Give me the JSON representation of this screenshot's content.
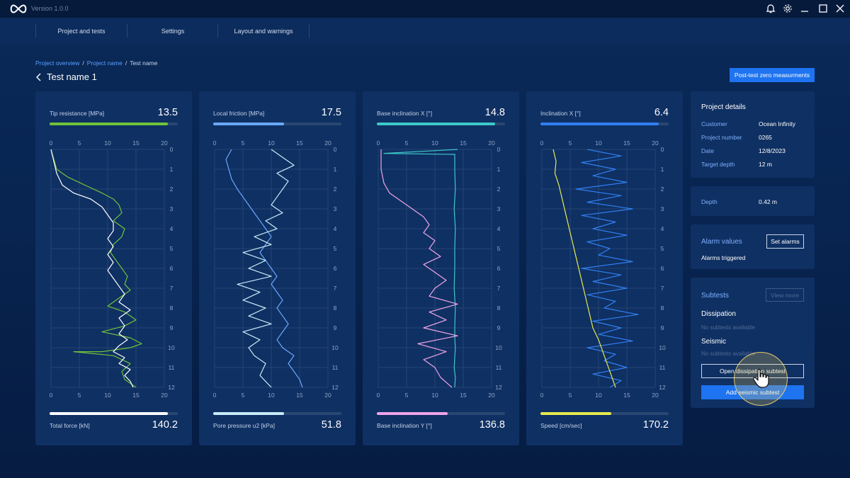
{
  "app": {
    "version": "Version 1.0.0",
    "logo_icon": "infinity-icon"
  },
  "window_controls": [
    "bell-icon",
    "gear-icon",
    "minimize-icon",
    "maximize-icon",
    "close-icon"
  ],
  "nav": {
    "items": [
      "Project and tests",
      "Settings",
      "Layout and warnings"
    ]
  },
  "breadcrumb": {
    "items": [
      "Project overview",
      "Project name",
      "Test name"
    ]
  },
  "page": {
    "title": "Test name 1"
  },
  "actions": {
    "post_test": "Post-test zero measurments"
  },
  "colors": {
    "accent": "#1e73f0",
    "tip_resistance": "#6fc23a",
    "total_force": "#ffffff",
    "local_friction": "#6aa8ff",
    "pore_pressure": "#c8ecf8",
    "inclination_x_base": "#3cc8c8",
    "inclination_y_base": "#f0a4e8",
    "inclination_x": "#2f7ff0",
    "speed": "#e6ea50"
  },
  "charts": [
    {
      "top": {
        "label": "Tip resistance [MPa]",
        "value": "13.5",
        "fill": 0.92
      },
      "bottom": {
        "label": "Total force [kN]",
        "value": "140.2",
        "fill": 0.92
      },
      "x_ticks": [
        "0",
        "5",
        "10",
        "15",
        "20"
      ]
    },
    {
      "top": {
        "label": "Local friction [MPa]",
        "value": "17.5",
        "fill": 0.55
      },
      "bottom": {
        "label": "Pore pressure u2 [kPa]",
        "value": "51.8",
        "fill": 0.55
      },
      "x_ticks": [
        "0",
        "5",
        "10",
        "15",
        "20"
      ]
    },
    {
      "top": {
        "label": "Base inclination X [°]",
        "value": "14.8",
        "fill": 0.92
      },
      "bottom": {
        "label": "Base inclination Y [°]",
        "value": "136.8",
        "fill": 0.55
      },
      "x_ticks": [
        "0",
        "5",
        "10",
        "15",
        "20"
      ]
    },
    {
      "top": {
        "label": "Inclination  X [°]",
        "value": "6.4",
        "fill": 0.92
      },
      "bottom": {
        "label": "Speed [cm/sec]",
        "value": "170.2",
        "fill": 0.55
      },
      "x_ticks": [
        "0",
        "5",
        "10",
        "15",
        "20"
      ]
    }
  ],
  "depth_ticks": [
    "0",
    "1",
    "2",
    "3",
    "4",
    "5",
    "6",
    "7",
    "8",
    "9",
    "10",
    "11",
    "12"
  ],
  "chart_data": [
    {
      "type": "line",
      "xlim": [
        0,
        20
      ],
      "ylim": [
        0,
        12
      ],
      "y_axis": "depth (inverted)",
      "series": [
        {
          "name": "Tip resistance [MPa]",
          "x": [
            0,
            0.5,
            1,
            3,
            6,
            9,
            11,
            12,
            12.5,
            11,
            13,
            12.5,
            11,
            10.5,
            11.5,
            12.5,
            13.5,
            13,
            14,
            12,
            10,
            13,
            15,
            13,
            9,
            14,
            16,
            14,
            9,
            4,
            11,
            14,
            12.5,
            13,
            15
          ],
          "y": [
            0,
            0.5,
            1,
            1.4,
            1.8,
            2.2,
            2.5,
            2.8,
            3.2,
            3.6,
            4,
            4.4,
            4.8,
            5.2,
            5.6,
            6,
            6.4,
            6.8,
            7.1,
            7.5,
            7.9,
            8.2,
            8.6,
            8.9,
            9.2,
            9.5,
            9.8,
            10,
            10.2,
            10.2,
            10.4,
            10.8,
            11.2,
            11.6,
            12
          ]
        },
        {
          "name": "Total force [kN]",
          "x": [
            0,
            0.5,
            1,
            2,
            4,
            7,
            9,
            10,
            11,
            11,
            10,
            11,
            10,
            11,
            10,
            11,
            12,
            13,
            12,
            14,
            12,
            13,
            12,
            13.5,
            12,
            11,
            13,
            12,
            14,
            13,
            14,
            14.5
          ],
          "y": [
            0,
            0.6,
            1.2,
            1.8,
            2.2,
            2.5,
            2.9,
            3.3,
            3.7,
            4.1,
            4.5,
            4.9,
            5.3,
            5.7,
            6.1,
            6.5,
            6.9,
            7.3,
            7.7,
            8.1,
            8.5,
            8.9,
            9.3,
            9.6,
            9.9,
            10.2,
            10.5,
            10.8,
            11.1,
            11.4,
            11.7,
            12
          ]
        }
      ]
    },
    {
      "type": "line",
      "xlim": [
        0,
        20
      ],
      "ylim": [
        0,
        12
      ],
      "y_axis": "depth (inverted)",
      "series": [
        {
          "name": "Local friction [MPa]",
          "x": [
            3,
            2,
            2.5,
            3,
            4,
            5,
            6,
            7,
            8,
            9,
            10,
            9,
            8,
            9,
            10,
            11,
            10,
            11,
            12,
            11,
            12,
            13,
            12,
            11,
            12,
            14,
            13,
            14,
            15,
            15.5
          ],
          "y": [
            0,
            0.5,
            1,
            1.5,
            2,
            2.4,
            2.8,
            3.2,
            3.6,
            4,
            4.4,
            4.8,
            5.2,
            5.6,
            6,
            6.4,
            6.8,
            7.2,
            7.6,
            8,
            8.4,
            8.8,
            9.2,
            9.6,
            10,
            10.4,
            10.8,
            11.2,
            11.6,
            12
          ]
        },
        {
          "name": "Pore pressure u2 [kPa]",
          "x": [
            10,
            12,
            14,
            11,
            13,
            12,
            11,
            10,
            12,
            9,
            11,
            7,
            10,
            5,
            9,
            6,
            10,
            4,
            8,
            5,
            9,
            6,
            10,
            5,
            8,
            6,
            7,
            9,
            8,
            10
          ],
          "y": [
            0,
            0.4,
            0.8,
            1.2,
            1.6,
            2,
            2.4,
            2.8,
            3.2,
            3.6,
            4,
            4.4,
            4.8,
            5.2,
            5.6,
            6,
            6.4,
            6.8,
            7.2,
            7.6,
            8,
            8.4,
            8.8,
            9.2,
            9.6,
            10,
            10.4,
            10.8,
            11.4,
            12
          ]
        }
      ]
    },
    {
      "type": "line",
      "xlim": [
        0,
        20
      ],
      "ylim": [
        0,
        12
      ],
      "y_axis": "depth (inverted)",
      "series": [
        {
          "name": "Base inclination X [°]",
          "x": [
            14,
            1,
            13.5,
            13.5,
            13.6,
            13.4,
            13.6,
            13.5,
            13.5,
            13.4,
            13.6,
            13.5,
            13.5,
            13.6,
            13.5,
            13.4,
            13.6,
            13.5
          ],
          "y": [
            0,
            0.2,
            0.25,
            1,
            2,
            3,
            4,
            5,
            6,
            7,
            8,
            9,
            9.5,
            10,
            10.5,
            11,
            11.5,
            12
          ]
        },
        {
          "name": "Base inclination Y [°]",
          "x": [
            0.5,
            0.5,
            1,
            2,
            4,
            6,
            8,
            9,
            8,
            10,
            9,
            11,
            8,
            10,
            12,
            10,
            9,
            14,
            9,
            12,
            8,
            14,
            7,
            12,
            8,
            10,
            11,
            13
          ],
          "y": [
            0,
            1,
            1.7,
            2.2,
            2.6,
            3,
            3.4,
            3.8,
            4.2,
            4.6,
            5,
            5.4,
            5.8,
            6.2,
            6.6,
            7,
            7.4,
            7.8,
            8.2,
            8.6,
            9,
            9.4,
            9.8,
            10.2,
            10.6,
            11,
            11.5,
            12
          ]
        }
      ]
    },
    {
      "type": "line",
      "xlim": [
        0,
        20
      ],
      "ylim": [
        0,
        12
      ],
      "y_axis": "depth (inverted)",
      "series": [
        {
          "name": "Inclination  X [°]",
          "x": [
            8,
            14,
            7,
            13,
            9,
            15,
            6,
            14,
            8,
            16,
            7,
            13,
            9,
            15,
            8,
            12,
            10,
            16,
            7,
            14,
            9,
            15,
            8,
            13,
            11,
            17,
            9,
            14,
            10,
            16,
            8,
            13,
            11,
            15,
            9,
            14,
            12
          ],
          "y": [
            0,
            0.33,
            0.66,
            1,
            1.33,
            1.66,
            2,
            2.33,
            2.66,
            3,
            3.33,
            3.66,
            4,
            4.33,
            4.66,
            5,
            5.33,
            5.66,
            6,
            6.33,
            6.66,
            7,
            7.33,
            7.66,
            8,
            8.33,
            8.66,
            9,
            9.33,
            9.66,
            10,
            10.33,
            10.66,
            11,
            11.33,
            11.66,
            12
          ]
        },
        {
          "name": "Speed [cm/sec]",
          "x": [
            2,
            2.5,
            2.3,
            3,
            3.5,
            4,
            4.5,
            5,
            5.5,
            6,
            6.5,
            7,
            7.5,
            8,
            8.5,
            9,
            10,
            11,
            12,
            13
          ],
          "y": [
            0,
            0.6,
            1.2,
            1.8,
            2.4,
            3,
            3.6,
            4.2,
            4.8,
            5.4,
            6,
            6.6,
            7.2,
            7.8,
            8.4,
            9,
            9.6,
            10.4,
            11.2,
            12
          ]
        }
      ]
    }
  ],
  "project_details": {
    "title": "Project details",
    "rows": [
      {
        "label": "Customer",
        "value": "Ocean Infinity"
      },
      {
        "label": "Project number",
        "value": "0265"
      },
      {
        "label": "Date",
        "value": "12/8/2023"
      },
      {
        "label": "Target depth",
        "value": "12 m"
      }
    ]
  },
  "depth": {
    "label": "Depth",
    "value": "0.42 m"
  },
  "alarms": {
    "title": "Alarm values",
    "button": "Set alarms",
    "status": "Alarms triggered"
  },
  "subtests": {
    "title": "Subtests",
    "view_more": "View more",
    "dissipation": {
      "title": "Dissipation",
      "empty": "No subtests available",
      "button": "Open dissipation subtest"
    },
    "seismic": {
      "title": "Seismic",
      "empty": "No subtests available",
      "button": "Add seismic subtest"
    }
  }
}
